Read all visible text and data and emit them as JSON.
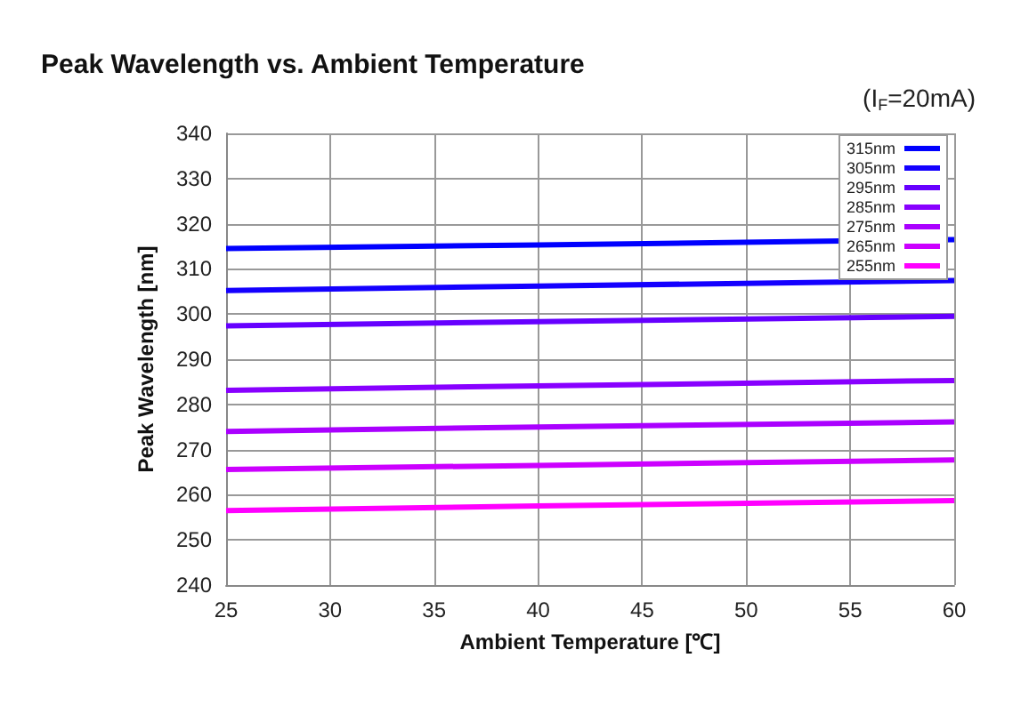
{
  "chart_data": {
    "type": "line",
    "title": "Peak Wavelength vs. Ambient Temperature",
    "xlabel": "Ambient Temperature [℃]",
    "ylabel": "Peak Wavelength [nm]",
    "annotations": [
      "(I$_{F}$=20mA)"
    ],
    "x": [
      25,
      40,
      60
    ],
    "xlim": [
      25,
      60
    ],
    "xticks": [
      25,
      30,
      35,
      40,
      45,
      50,
      55,
      60
    ],
    "ylim": [
      240,
      340
    ],
    "yticks": [
      240,
      250,
      260,
      270,
      280,
      290,
      300,
      310,
      320,
      330,
      340
    ],
    "grid": true,
    "legend": "top right",
    "marker": "none",
    "line_style": "solid",
    "series": [
      {
        "name": "315nm",
        "color": "#0000ff",
        "values": [
          314.5,
          315.3,
          316.5
        ]
      },
      {
        "name": "305nm",
        "color": "#1400ff",
        "values": [
          305.2,
          306.2,
          307.4
        ]
      },
      {
        "name": "295nm",
        "color": "#6600ff",
        "values": [
          297.4,
          298.3,
          299.5
        ]
      },
      {
        "name": "285nm",
        "color": "#8800ff",
        "values": [
          283.1,
          284.1,
          285.3
        ]
      },
      {
        "name": "275nm",
        "color": "#aa00ff",
        "values": [
          274,
          275,
          276.1
        ]
      },
      {
        "name": "265nm",
        "color": "#cc00ff",
        "values": [
          265.6,
          266.5,
          267.7
        ]
      },
      {
        "name": "255nm",
        "color": "#ff00ff",
        "values": [
          256.5,
          257.5,
          258.7
        ]
      }
    ]
  }
}
